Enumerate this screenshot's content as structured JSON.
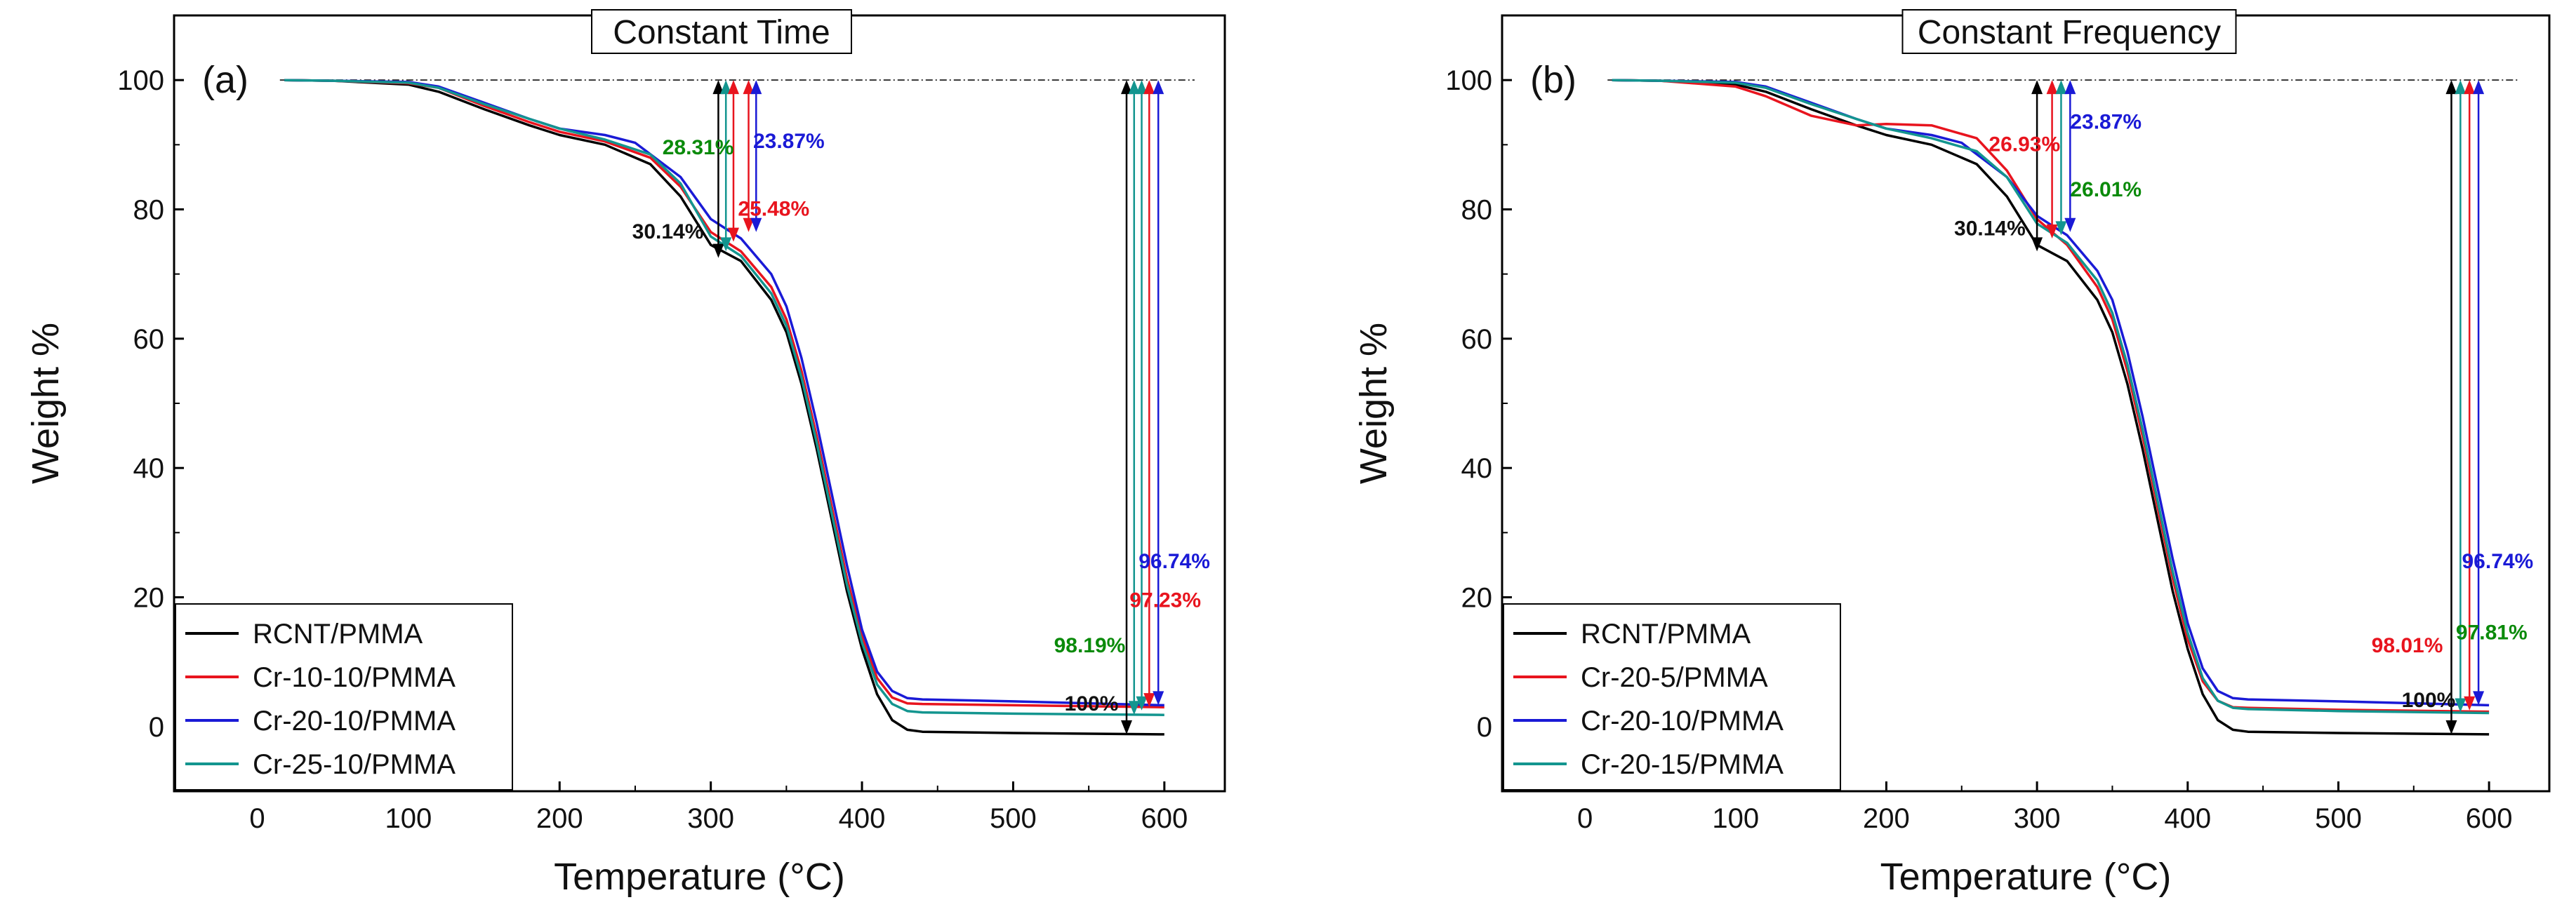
{
  "chart_data": [
    {
      "type": "line",
      "panel_label": "(a)",
      "title": "Constant Time",
      "xlabel": "Temperature (°C)",
      "ylabel": "Weight %",
      "xlim": [
        -55,
        640
      ],
      "ylim": [
        -10,
        110
      ],
      "xticks": [
        0,
        100,
        200,
        300,
        400,
        500,
        600
      ],
      "yticks": [
        0,
        20,
        40,
        60,
        80,
        100
      ],
      "reference_line": 100,
      "legend_position": "bottom-left",
      "series": [
        {
          "name": "RCNT/PMMA",
          "color": "#000000",
          "x": [
            18,
            50,
            100,
            120,
            150,
            180,
            200,
            230,
            260,
            280,
            300,
            320,
            340,
            350,
            360,
            370,
            380,
            390,
            400,
            410,
            420,
            430,
            440,
            500,
            600
          ],
          "y": [
            100,
            99.9,
            99.3,
            98.2,
            95.5,
            93,
            91.5,
            90,
            87,
            82,
            74.5,
            72,
            66,
            61,
            53,
            43,
            32,
            21,
            12,
            5,
            1,
            -0.5,
            -0.8,
            -1,
            -1.2
          ]
        },
        {
          "name": "Cr-10-10/PMMA",
          "color": "#e8141e",
          "x": [
            18,
            50,
            100,
            120,
            150,
            180,
            200,
            230,
            260,
            280,
            300,
            320,
            340,
            350,
            360,
            370,
            380,
            390,
            400,
            410,
            420,
            430,
            440,
            500,
            600
          ],
          "y": [
            100,
            99.9,
            99.5,
            98.8,
            96,
            93.5,
            92,
            90.5,
            88,
            83.5,
            76.5,
            73.5,
            68,
            63,
            55,
            45,
            34,
            23,
            14,
            7.5,
            4.5,
            3.6,
            3.5,
            3.3,
            3
          ]
        },
        {
          "name": "Cr-20-10/PMMA",
          "color": "#1a1ad6",
          "x": [
            18,
            50,
            100,
            120,
            150,
            180,
            200,
            230,
            250,
            280,
            300,
            320,
            340,
            350,
            360,
            370,
            380,
            390,
            400,
            410,
            420,
            430,
            440,
            500,
            600
          ],
          "y": [
            100,
            99.9,
            99.7,
            99,
            96.5,
            94,
            92.5,
            91.5,
            90.3,
            85,
            78.5,
            75.5,
            70,
            65,
            57,
            47,
            36,
            25,
            15,
            8.5,
            5.5,
            4.4,
            4.2,
            3.9,
            3.3
          ]
        },
        {
          "name": "Cr-25-10/PMMA",
          "color": "#13958f",
          "x": [
            18,
            50,
            100,
            120,
            150,
            180,
            200,
            230,
            260,
            280,
            300,
            320,
            340,
            350,
            360,
            370,
            380,
            390,
            400,
            410,
            420,
            430,
            440,
            500,
            600
          ],
          "y": [
            100,
            99.9,
            99.6,
            98.8,
            96.3,
            94,
            92.5,
            90.8,
            88.5,
            84,
            75.8,
            72.8,
            67,
            62,
            54,
            44,
            33,
            22,
            13,
            6.5,
            3.5,
            2.4,
            2.2,
            2,
            1.8
          ]
        }
      ],
      "arrows": [
        {
          "x": 305,
          "y_top": 100,
          "y_bottom": 72.5,
          "color": "#000000"
        },
        {
          "x": 310,
          "y_top": 100,
          "y_bottom": 73.5,
          "color": "#13958f"
        },
        {
          "x": 315,
          "y_top": 100,
          "y_bottom": 75,
          "color": "#e8141e"
        },
        {
          "x": 325,
          "y_top": 100,
          "y_bottom": 76.5,
          "color": "#e8141e"
        },
        {
          "x": 330,
          "y_top": 100,
          "y_bottom": 76.5,
          "color": "#1a1ad6"
        },
        {
          "x": 575,
          "y_top": 100,
          "y_bottom": -1.2,
          "color": "#000000"
        },
        {
          "x": 580,
          "y_top": 100,
          "y_bottom": 1.8,
          "color": "#13958f"
        },
        {
          "x": 585,
          "y_top": 100,
          "y_bottom": 2.5,
          "color": "#13958f"
        },
        {
          "x": 590,
          "y_top": 100,
          "y_bottom": 3,
          "color": "#e8141e"
        },
        {
          "x": 596,
          "y_top": 100,
          "y_bottom": 3.3,
          "color": "#1a1ad6"
        }
      ],
      "annotations": [
        {
          "text": "28.31%",
          "x": 268,
          "y": 88.5,
          "color": "#0a8a0a"
        },
        {
          "text": "23.87%",
          "x": 328,
          "y": 89.5,
          "color": "#1a1ad6"
        },
        {
          "text": "25.48%",
          "x": 318,
          "y": 79,
          "color": "#e8141e"
        },
        {
          "text": "30.14%",
          "x": 248,
          "y": 75.5,
          "color": "#111111"
        },
        {
          "text": "96.74%",
          "x": 583,
          "y": 24.5,
          "color": "#1a1ad6"
        },
        {
          "text": "97.23%",
          "x": 577,
          "y": 18.5,
          "color": "#e8141e"
        },
        {
          "text": "98.19%",
          "x": 527,
          "y": 11.5,
          "color": "#0a8a0a"
        },
        {
          "text": "100%",
          "x": 534,
          "y": 2.5,
          "color": "#111111"
        }
      ]
    },
    {
      "type": "line",
      "panel_label": "(b)",
      "title": "Constant Frequency",
      "xlabel": "Temperature (°C)",
      "ylabel": "Weight %",
      "xlim": [
        -55,
        640
      ],
      "ylim": [
        -10,
        110
      ],
      "xticks": [
        0,
        100,
        200,
        300,
        400,
        500,
        600
      ],
      "yticks": [
        0,
        20,
        40,
        60,
        80,
        100
      ],
      "reference_line": 100,
      "legend_position": "bottom-left",
      "series": [
        {
          "name": "RCNT/PMMA",
          "color": "#000000",
          "x": [
            18,
            50,
            100,
            120,
            150,
            180,
            200,
            230,
            260,
            280,
            300,
            320,
            340,
            350,
            360,
            370,
            380,
            390,
            400,
            410,
            420,
            430,
            440,
            500,
            600
          ],
          "y": [
            100,
            99.9,
            99.3,
            98.2,
            95.5,
            93,
            91.5,
            90,
            87,
            82,
            74.5,
            72,
            66,
            61,
            53,
            43,
            32,
            21,
            12,
            5,
            1,
            -0.5,
            -0.8,
            -1,
            -1.2
          ]
        },
        {
          "name": "Cr-20-5/PMMA",
          "color": "#e8141e",
          "x": [
            18,
            50,
            100,
            120,
            150,
            180,
            200,
            230,
            260,
            280,
            300,
            320,
            340,
            350,
            360,
            370,
            380,
            390,
            400,
            410,
            420,
            430,
            440,
            500,
            600
          ],
          "y": [
            100,
            99.9,
            99,
            97.5,
            94.5,
            93,
            93.2,
            93,
            91,
            86,
            78.5,
            74.5,
            68,
            63,
            55,
            45,
            34,
            23,
            13.5,
            7,
            4,
            3,
            2.9,
            2.6,
            2.3
          ]
        },
        {
          "name": "Cr-20-10/PMMA",
          "color": "#1a1ad6",
          "x": [
            18,
            50,
            100,
            120,
            150,
            180,
            200,
            230,
            250,
            280,
            300,
            320,
            340,
            350,
            360,
            370,
            380,
            390,
            400,
            410,
            420,
            430,
            440,
            500,
            600
          ],
          "y": [
            100,
            99.9,
            99.7,
            99,
            96.5,
            94,
            92.5,
            91.5,
            90.3,
            85,
            79,
            76,
            70.5,
            66,
            58,
            48,
            37,
            26,
            16,
            9,
            5.5,
            4.4,
            4.2,
            3.9,
            3.3
          ]
        },
        {
          "name": "Cr-20-15/PMMA",
          "color": "#13958f",
          "x": [
            18,
            50,
            100,
            120,
            150,
            180,
            200,
            230,
            260,
            280,
            300,
            320,
            340,
            350,
            360,
            370,
            380,
            390,
            400,
            410,
            420,
            430,
            440,
            500,
            600
          ],
          "y": [
            100,
            99.9,
            99.6,
            98.8,
            96.3,
            94,
            92.5,
            91,
            89,
            85,
            77.8,
            74.8,
            69,
            64,
            56,
            46,
            35,
            24,
            14.5,
            7.5,
            4,
            2.9,
            2.7,
            2.4,
            2.1
          ]
        }
      ],
      "arrows": [
        {
          "x": 300,
          "y_top": 100,
          "y_bottom": 73.5,
          "color": "#000000"
        },
        {
          "x": 310,
          "y_top": 100,
          "y_bottom": 75.5,
          "color": "#e8141e"
        },
        {
          "x": 316,
          "y_top": 100,
          "y_bottom": 76,
          "color": "#13958f"
        },
        {
          "x": 322,
          "y_top": 100,
          "y_bottom": 76.5,
          "color": "#1a1ad6"
        },
        {
          "x": 575,
          "y_top": 100,
          "y_bottom": -1.2,
          "color": "#000000"
        },
        {
          "x": 581,
          "y_top": 100,
          "y_bottom": 2.2,
          "color": "#13958f"
        },
        {
          "x": 587,
          "y_top": 100,
          "y_bottom": 2.5,
          "color": "#e8141e"
        },
        {
          "x": 593,
          "y_top": 100,
          "y_bottom": 3.3,
          "color": "#1a1ad6"
        }
      ],
      "annotations": [
        {
          "text": "26.93%",
          "x": 268,
          "y": 89,
          "color": "#e8141e"
        },
        {
          "text": "23.87%",
          "x": 322,
          "y": 92.5,
          "color": "#1a1ad6"
        },
        {
          "text": "26.01%",
          "x": 322,
          "y": 82,
          "color": "#0a8a0a"
        },
        {
          "text": "30.14%",
          "x": 245,
          "y": 76,
          "color": "#111111"
        },
        {
          "text": "96.74%",
          "x": 582,
          "y": 24.5,
          "color": "#1a1ad6"
        },
        {
          "text": "97.81%",
          "x": 578,
          "y": 13.5,
          "color": "#0a8a0a"
        },
        {
          "text": "98.01%",
          "x": 522,
          "y": 11.5,
          "color": "#e8141e"
        },
        {
          "text": "100%",
          "x": 542,
          "y": 3,
          "color": "#111111"
        }
      ]
    }
  ]
}
